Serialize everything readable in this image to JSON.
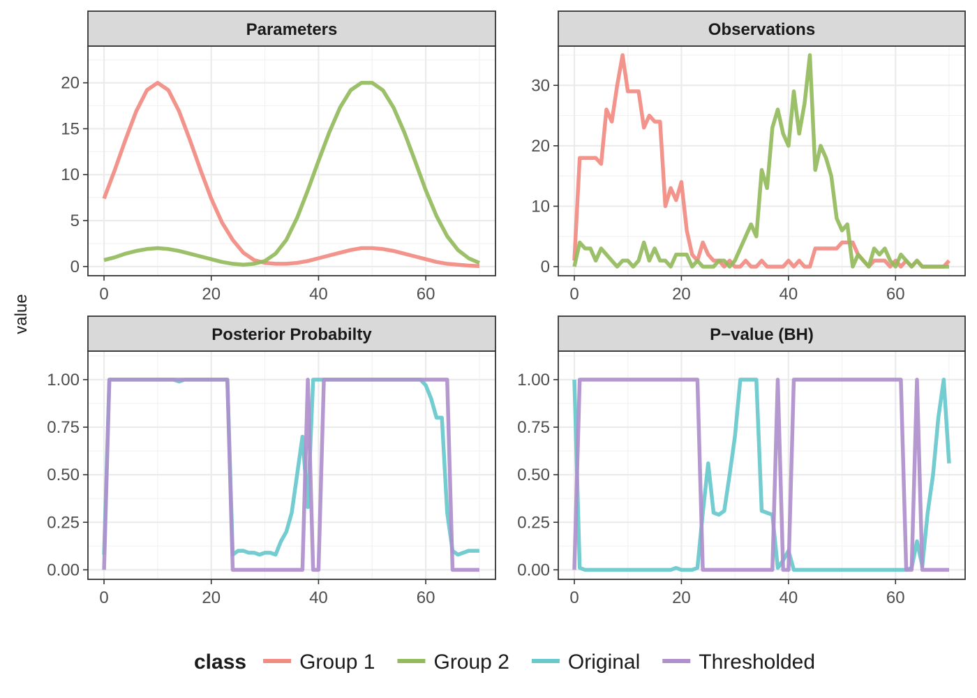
{
  "chart_data": {
    "type": "line",
    "ylabel": "value",
    "legend": {
      "title": "class",
      "position": "bottom",
      "entries": [
        {
          "name": "Group 1",
          "color": "#F28B82"
        },
        {
          "name": "Group 2",
          "color": "#93BB5C"
        },
        {
          "name": "Original",
          "color": "#67C9CC"
        },
        {
          "name": "Thresholded",
          "color": "#AF8FCC"
        }
      ]
    },
    "grid": true,
    "facets": [
      {
        "title": "Parameters",
        "xlim": [
          -3,
          73
        ],
        "ylim": [
          -1,
          24
        ],
        "xticks": [
          0,
          20,
          40,
          60
        ],
        "yticks": [
          0,
          5,
          10,
          15,
          20
        ],
        "ytick_labels": [
          "0",
          "5",
          "10",
          "15",
          "20"
        ],
        "series": [
          {
            "name": "Group 1",
            "x": [
              0,
              2,
              4,
              6,
              8,
              10,
              12,
              14,
              16,
              18,
              20,
              22,
              24,
              26,
              28,
              30,
              32,
              34,
              36,
              38,
              40,
              42,
              44,
              46,
              48,
              50,
              52,
              54,
              56,
              58,
              60,
              62,
              64,
              66,
              68,
              70
            ],
            "y": [
              7.4,
              10.5,
              13.8,
              16.9,
              19.2,
              20,
              19.2,
              16.9,
              13.8,
              10.5,
              7.4,
              4.8,
              2.9,
              1.5,
              0.7,
              0.4,
              0.3,
              0.3,
              0.4,
              0.6,
              0.9,
              1.2,
              1.5,
              1.8,
              2,
              2,
              1.9,
              1.7,
              1.4,
              1.1,
              0.8,
              0.5,
              0.3,
              0.2,
              0.1,
              0.05
            ]
          },
          {
            "name": "Group 2",
            "x": [
              0,
              2,
              4,
              6,
              8,
              10,
              12,
              14,
              16,
              18,
              20,
              22,
              24,
              26,
              28,
              30,
              32,
              34,
              36,
              38,
              40,
              42,
              44,
              46,
              48,
              50,
              52,
              54,
              56,
              58,
              60,
              62,
              64,
              66,
              68,
              70
            ],
            "y": [
              0.7,
              1,
              1.4,
              1.7,
              1.9,
              2,
              1.9,
              1.7,
              1.4,
              1.1,
              0.8,
              0.5,
              0.3,
              0.2,
              0.3,
              0.6,
              1.4,
              2.9,
              5.3,
              8.3,
              11.5,
              14.6,
              17.3,
              19.2,
              20,
              20,
              19.2,
              17.3,
              14.6,
              11.5,
              8.3,
              5.5,
              3.3,
              1.8,
              0.9,
              0.4
            ]
          }
        ]
      },
      {
        "title": "Observations",
        "xlim": [
          -3,
          73
        ],
        "ylim": [
          -1.5,
          36.5
        ],
        "xticks": [
          0,
          20,
          40,
          60
        ],
        "yticks": [
          0,
          10,
          20,
          30
        ],
        "ytick_labels": [
          "0",
          "10",
          "20",
          "30"
        ],
        "series": [
          {
            "name": "Group 1",
            "x": [
              0,
              1,
              2,
              3,
              4,
              5,
              6,
              7,
              8,
              9,
              10,
              11,
              12,
              13,
              14,
              15,
              16,
              17,
              18,
              19,
              20,
              21,
              22,
              23,
              24,
              25,
              26,
              27,
              28,
              29,
              30,
              31,
              32,
              33,
              34,
              35,
              36,
              37,
              38,
              39,
              40,
              41,
              42,
              43,
              44,
              45,
              46,
              47,
              48,
              49,
              50,
              51,
              52,
              53,
              54,
              55,
              56,
              57,
              58,
              59,
              60,
              61,
              62,
              63,
              64,
              65,
              66,
              67,
              68,
              69,
              70
            ],
            "y": [
              1,
              18,
              18,
              18,
              18,
              17,
              26,
              24,
              30,
              35,
              29,
              29,
              29,
              23,
              25,
              24,
              24,
              10,
              13,
              11,
              14,
              6,
              2,
              1,
              4,
              2,
              1,
              1,
              0,
              1,
              0,
              0,
              1,
              0,
              0,
              1,
              0,
              0,
              0,
              0,
              1,
              0,
              1,
              0,
              0,
              3,
              3,
              3,
              3,
              3,
              4,
              4,
              4,
              2,
              1,
              0,
              1,
              1,
              1,
              0,
              1,
              0,
              1,
              0,
              1,
              0,
              0,
              0,
              0,
              0,
              1
            ]
          },
          {
            "name": "Group 2",
            "x": [
              0,
              1,
              2,
              3,
              4,
              5,
              6,
              7,
              8,
              9,
              10,
              11,
              12,
              13,
              14,
              15,
              16,
              17,
              18,
              19,
              20,
              21,
              22,
              23,
              24,
              25,
              26,
              27,
              28,
              29,
              30,
              31,
              32,
              33,
              34,
              35,
              36,
              37,
              38,
              39,
              40,
              41,
              42,
              43,
              44,
              45,
              46,
              47,
              48,
              49,
              50,
              51,
              52,
              53,
              54,
              55,
              56,
              57,
              58,
              59,
              60,
              61,
              62,
              63,
              64,
              65,
              66,
              67,
              68,
              69,
              70
            ],
            "y": [
              0,
              4,
              3,
              3,
              1,
              3,
              2,
              1,
              0,
              1,
              1,
              0,
              1,
              4,
              1,
              3,
              1,
              1,
              0,
              2,
              2,
              2,
              0,
              1,
              0,
              0,
              0,
              1,
              1,
              0,
              1,
              3,
              5,
              7,
              5,
              16,
              13,
              23,
              26,
              22,
              20,
              29,
              22,
              27,
              35,
              16,
              20,
              18,
              15,
              8,
              6,
              7,
              0,
              2,
              1,
              0,
              3,
              2,
              3,
              1,
              0,
              2,
              1,
              0,
              1,
              0,
              0,
              0,
              0,
              0,
              0
            ]
          }
        ]
      },
      {
        "title": "Posterior Probabilty",
        "xlim": [
          -3,
          73
        ],
        "ylim": [
          -0.05,
          1.15
        ],
        "xticks": [
          0,
          20,
          40,
          60
        ],
        "yticks": [
          0,
          0.25,
          0.5,
          0.75,
          1
        ],
        "ytick_labels": [
          "0.00",
          "0.25",
          "0.50",
          "0.75",
          "1.00"
        ],
        "series": [
          {
            "name": "Original",
            "x": [
              0,
              1,
              2,
              3,
              4,
              5,
              6,
              7,
              8,
              9,
              10,
              11,
              12,
              13,
              14,
              15,
              16,
              17,
              18,
              19,
              20,
              21,
              22,
              23,
              24,
              25,
              26,
              27,
              28,
              29,
              30,
              31,
              32,
              33,
              34,
              35,
              36,
              37,
              38,
              39,
              40,
              41,
              42,
              43,
              44,
              45,
              46,
              47,
              48,
              49,
              50,
              51,
              52,
              53,
              54,
              55,
              56,
              57,
              58,
              59,
              60,
              61,
              62,
              63,
              64,
              65,
              66,
              67,
              68,
              69,
              70
            ],
            "y": [
              0.08,
              1,
              1,
              1,
              1,
              1,
              1,
              1,
              1,
              1,
              1,
              1,
              1,
              1,
              0.99,
              1,
              1,
              1,
              1,
              1,
              1,
              1,
              1,
              1,
              0.08,
              0.1,
              0.1,
              0.09,
              0.09,
              0.08,
              0.09,
              0.09,
              0.08,
              0.15,
              0.2,
              0.3,
              0.5,
              0.7,
              0.33,
              1,
              1,
              1,
              1,
              1,
              1,
              1,
              1,
              1,
              1,
              1,
              1,
              1,
              1,
              1,
              1,
              1,
              1,
              1,
              1,
              1,
              0.97,
              0.9,
              0.8,
              0.8,
              0.3,
              0.1,
              0.08,
              0.09,
              0.1,
              0.1,
              0.1
            ]
          },
          {
            "name": "Thresholded",
            "x": [
              0,
              1,
              23,
              24,
              37,
              38,
              39,
              40,
              41,
              64,
              65,
              70
            ],
            "y": [
              0,
              1,
              1,
              0,
              0,
              1,
              0,
              0,
              1,
              1,
              0,
              0
            ]
          }
        ]
      },
      {
        "title": "P−value (BH)",
        "xlim": [
          -3,
          73
        ],
        "ylim": [
          -0.05,
          1.15
        ],
        "xticks": [
          0,
          20,
          40,
          60
        ],
        "yticks": [
          0,
          0.25,
          0.5,
          0.75,
          1
        ],
        "ytick_labels": [
          "0.00",
          "0.25",
          "0.50",
          "0.75",
          "1.00"
        ],
        "series": [
          {
            "name": "Original",
            "x": [
              0,
              1,
              2,
              3,
              4,
              5,
              6,
              7,
              8,
              9,
              10,
              11,
              12,
              13,
              14,
              15,
              16,
              17,
              18,
              19,
              20,
              21,
              22,
              23,
              24,
              25,
              26,
              27,
              28,
              29,
              30,
              31,
              32,
              33,
              34,
              35,
              36,
              37,
              38,
              39,
              40,
              41,
              42,
              43,
              44,
              45,
              46,
              47,
              48,
              49,
              50,
              51,
              52,
              53,
              54,
              55,
              56,
              57,
              58,
              59,
              60,
              61,
              62,
              63,
              64,
              65,
              66,
              67,
              68,
              69,
              70
            ],
            "y": [
              1,
              0.01,
              0,
              0,
              0,
              0,
              0,
              0,
              0,
              0,
              0,
              0,
              0,
              0,
              0,
              0,
              0,
              0,
              0,
              0.01,
              0,
              0,
              0,
              0.01,
              0.3,
              0.56,
              0.3,
              0.29,
              0.31,
              0.5,
              0.7,
              1,
              1,
              1,
              1,
              0.31,
              0.3,
              0.29,
              0.01,
              0.05,
              0.1,
              0,
              0,
              0,
              0,
              0,
              0,
              0,
              0,
              0,
              0,
              0,
              0,
              0,
              0,
              0,
              0,
              0,
              0,
              0,
              0,
              0,
              0,
              0.01,
              0.15,
              0.02,
              0.3,
              0.5,
              0.8,
              1,
              0.56
            ]
          },
          {
            "name": "Thresholded",
            "x": [
              0,
              1,
              23,
              24,
              37,
              38,
              39,
              40,
              41,
              61,
              62,
              63,
              64,
              65,
              70
            ],
            "y": [
              0,
              1,
              1,
              0,
              0,
              1,
              0,
              0,
              1,
              1,
              0,
              0,
              1,
              0,
              0
            ]
          }
        ]
      }
    ]
  }
}
